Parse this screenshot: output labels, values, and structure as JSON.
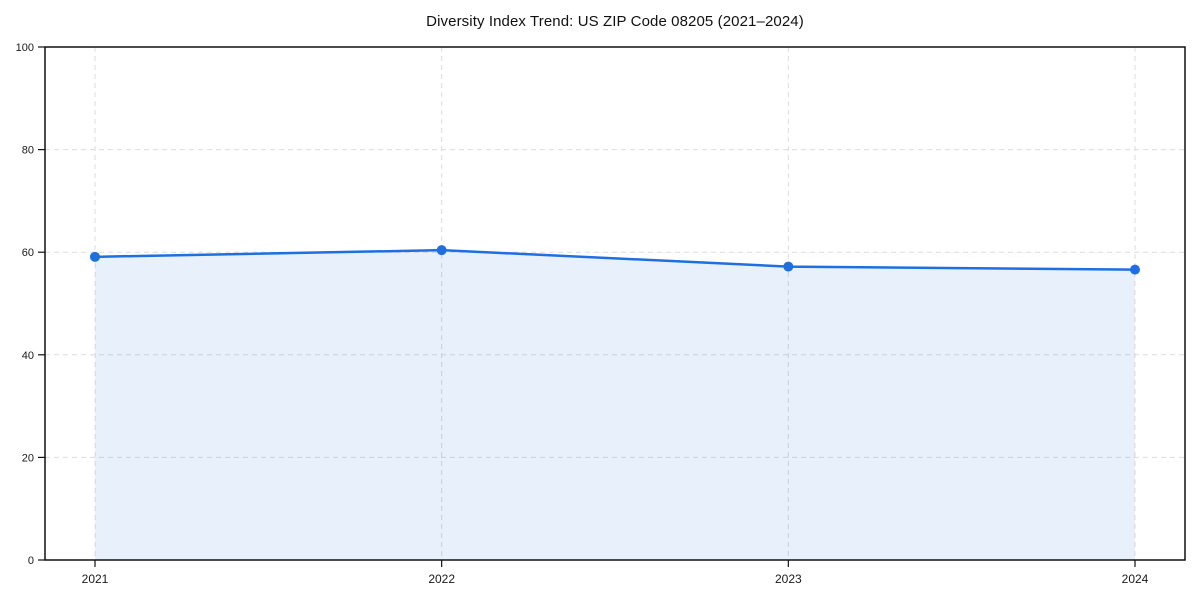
{
  "title": "Diversity Index Trend: US ZIP Code 08205 (2021–2024)",
  "chart_data": {
    "type": "area",
    "title": "Diversity Index Trend: US ZIP Code 08205 (2021–2024)",
    "categories": [
      "2021",
      "2022",
      "2023",
      "2024"
    ],
    "series": [
      {
        "name": "Diversity Index",
        "values": [
          59.1,
          60.4,
          57.2,
          56.6
        ]
      }
    ],
    "xlabel": "",
    "ylabel": "",
    "ylim": [
      0,
      100
    ],
    "yticks": [
      0,
      20,
      40,
      60,
      80,
      100
    ],
    "grid": true,
    "grid_style": "dashed",
    "legend": "none",
    "colors": {
      "line": "#1f6fe0",
      "marker": "#1f6fe0",
      "fill": "rgba(31,111,224,0.10)",
      "gridline": "#dcdcdc",
      "axis": "#111111",
      "tick_text": "#1a1a1a",
      "background": "#ffffff"
    }
  }
}
